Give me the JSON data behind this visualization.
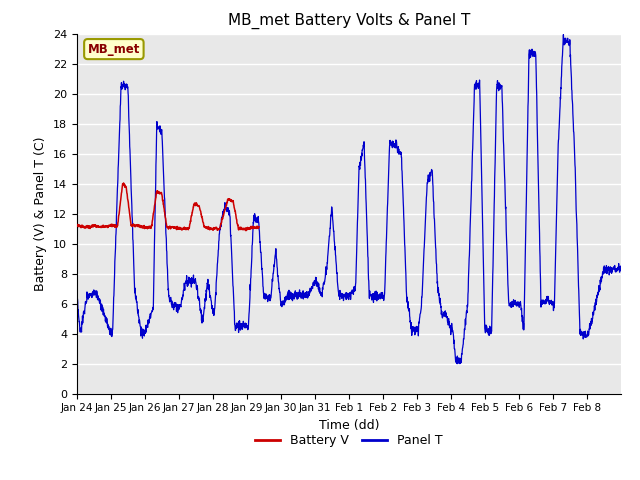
{
  "title": "MB_met Battery Volts & Panel T",
  "xlabel": "Time (dd)",
  "ylabel": "Battery (V) & Panel T (C)",
  "ylim": [
    0,
    24
  ],
  "yticks": [
    0,
    2,
    4,
    6,
    8,
    10,
    12,
    14,
    16,
    18,
    20,
    22,
    24
  ],
  "xtick_labels": [
    "Jan 24",
    "Jan 25",
    "Jan 26",
    "Jan 27",
    "Jan 28",
    "Jan 29",
    "Jan 30",
    "Jan 31",
    "Feb 1",
    "Feb 2",
    "Feb 3",
    "Feb 4",
    "Feb 5",
    "Feb 6",
    "Feb 7",
    "Feb 8"
  ],
  "station_label": "MB_met",
  "fig_bg_color": "#ffffff",
  "plot_bg_color": "#e8e8e8",
  "battery_color": "#cc0000",
  "panel_color": "#0000cc",
  "legend_battery": "Battery V",
  "legend_panel": "Panel T",
  "title_fontsize": 11,
  "axis_fontsize": 9,
  "tick_fontsize": 8,
  "grid_color": "#ffffff",
  "label_box_facecolor": "#ffffcc",
  "label_box_edgecolor": "#999900",
  "label_text_color": "#880000"
}
